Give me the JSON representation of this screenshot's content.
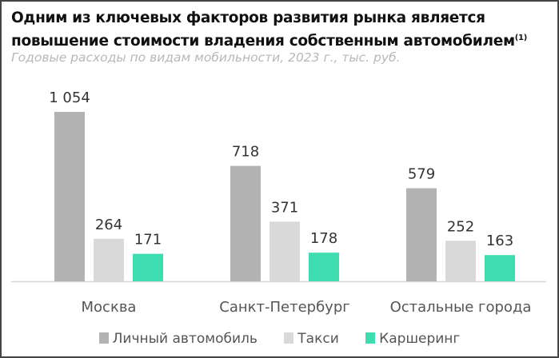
{
  "chart_data": {
    "type": "bar",
    "title": "Одним из ключевых факторов развития рынка является повышение стоимости владения собственным автомобилем",
    "title_footnote": "(1)",
    "subtitle": "Годовые расходы по видам мобильности, 2023 г., тыс. руб.",
    "categories": [
      "Москва",
      "Санкт-Петербург",
      "Остальные города"
    ],
    "series": [
      {
        "name": "Личный автомобиль",
        "color": "#b3b3b3",
        "values": [
          1054,
          718,
          579
        ],
        "labels": [
          "1 054",
          "718",
          "579"
        ]
      },
      {
        "name": "Такси",
        "color": "#d9d9d9",
        "values": [
          264,
          371,
          252
        ],
        "labels": [
          "264",
          "371",
          "252"
        ]
      },
      {
        "name": "Каршеринг",
        "color": "#3ddcb1",
        "values": [
          171,
          178,
          163
        ],
        "labels": [
          "171",
          "178",
          "163"
        ]
      }
    ],
    "ylim": [
      0,
      1054
    ],
    "grid": false,
    "legend_position": "bottom",
    "xlabel": "",
    "ylabel": ""
  }
}
